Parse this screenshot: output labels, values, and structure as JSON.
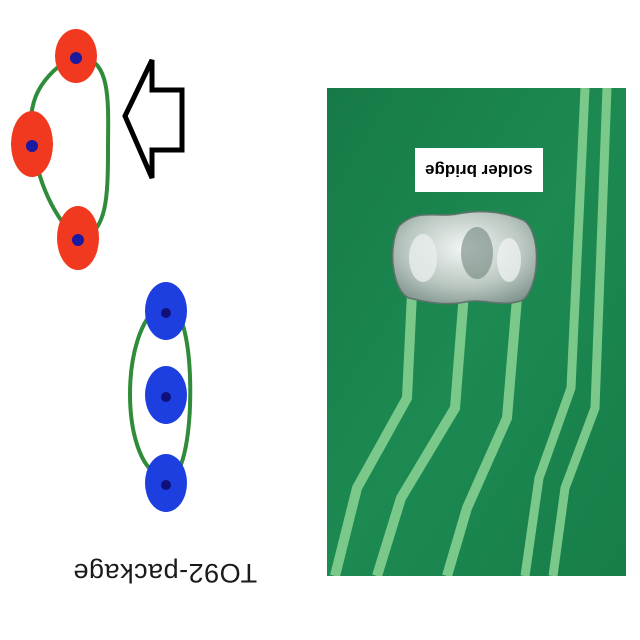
{
  "package_label": "TO92-package",
  "defect_label": "solder bridge",
  "colors": {
    "pad_bad": "#f0391e",
    "pad_good": "#1d3fe0",
    "hole": "#1a1aa0",
    "trace": "#2f8c3a",
    "board": "#1d8a52",
    "board_trace": "#7bc98a",
    "solder": "#d8e0dc"
  },
  "icons": [
    "arrow-outline-icon"
  ]
}
